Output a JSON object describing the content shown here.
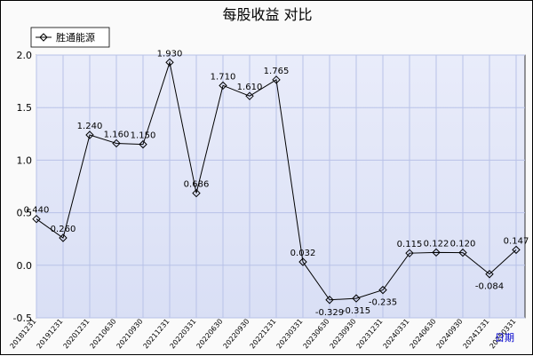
{
  "chart_data": {
    "type": "line",
    "title": "每股收益  对比",
    "xlabel": "日期",
    "ylabel": "",
    "ylim": [
      -0.5,
      2.0
    ],
    "yticks": [
      "-0.5",
      "0.0",
      "0.5",
      "1.0",
      "1.5",
      "2.0"
    ],
    "grid": true,
    "legend_position": "top-left",
    "categories": [
      "20181231",
      "20191231",
      "20201231",
      "20210630",
      "20210930",
      "20211231",
      "20220331",
      "20220630",
      "20220930",
      "20221231",
      "20230331",
      "20230630",
      "20230930",
      "20231231",
      "20240331",
      "20240630",
      "20240930",
      "20241231",
      "20250331"
    ],
    "series": [
      {
        "name": "胜通能源",
        "values": [
          0.44,
          0.26,
          1.24,
          1.16,
          1.15,
          1.93,
          0.686,
          1.71,
          1.61,
          1.765,
          0.032,
          -0.329,
          -0.315,
          -0.235,
          0.115,
          0.122,
          0.12,
          -0.084,
          0.147
        ],
        "labels": [
          "0.440",
          "0.260",
          "1.240",
          "1.160",
          "1.150",
          "1.930",
          "0.686",
          "1.710",
          "1.610",
          "1.765",
          "0.032",
          "-0.329",
          "-0.315",
          "-0.235",
          "0.115",
          "0.122",
          "0.120",
          "-0.084",
          "0.147"
        ]
      }
    ],
    "colors": {
      "plot_bg": "#dde3f5",
      "grid": "#b8c2e8",
      "line": "#000000"
    }
  }
}
